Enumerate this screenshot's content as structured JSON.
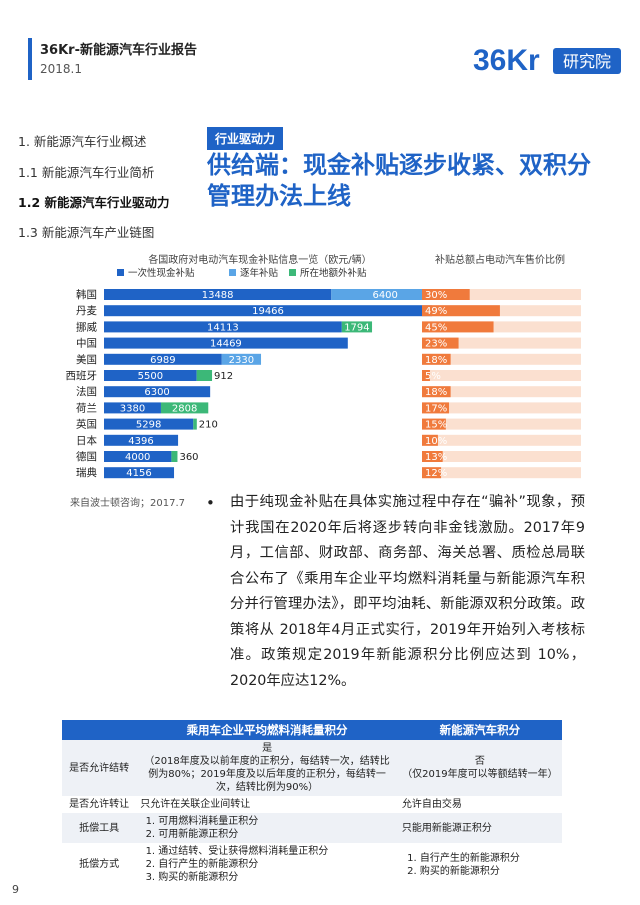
{
  "header": {
    "title": "36Kr-新能源汽车行业报告",
    "date": "2018.1",
    "logo_mark": "36Kr",
    "logo_text": "研究院"
  },
  "nav": {
    "items": [
      {
        "label": "1. 新能源汽车行业概述",
        "active": false
      },
      {
        "label": "1.1 新能源汽车行业简析",
        "active": false
      },
      {
        "label": "1.2 新能源汽车行业驱动力",
        "active": true
      },
      {
        "label": "1.3 新能源汽车产业链图",
        "active": false
      }
    ]
  },
  "section": {
    "tag": "行业驱动力",
    "headline": "供给端：现金补贴逐步收紧、双积分管理办法上线"
  },
  "colors": {
    "primary": "#1f63c6",
    "bar_series1": "#1f63c6",
    "bar_series2": "#5aa5e6",
    "bar_series3": "#3cb878",
    "pct_bar": "#f07a3c",
    "pct_bg": "#fbe0d0"
  },
  "chart_data": [
    {
      "type": "bar",
      "orientation": "horizontal",
      "stacked": true,
      "title": "各国政府对电动汽车现金补贴信息一览（欧元/辆）",
      "categories": [
        "韩国",
        "丹麦",
        "挪威",
        "中国",
        "美国",
        "西班牙",
        "法国",
        "荷兰",
        "英国",
        "日本",
        "德国",
        "瑞典"
      ],
      "series": [
        {
          "name": "一次性现金补贴",
          "values": [
            13488,
            19466,
            14113,
            14469,
            6989,
            5500,
            6300,
            3380,
            5298,
            4396,
            4000,
            4156
          ]
        },
        {
          "name": "逐年补贴",
          "values": [
            6400,
            0,
            0,
            0,
            2330,
            0,
            0,
            0,
            0,
            0,
            0,
            0
          ]
        },
        {
          "name": "所在地额外补贴",
          "values": [
            0,
            0,
            1794,
            0,
            0,
            912,
            0,
            2808,
            210,
            0,
            360,
            0
          ]
        }
      ],
      "labels": [
        [
          "13488",
          "6400",
          ""
        ],
        [
          "19466",
          "",
          ""
        ],
        [
          "14113",
          "",
          "1794"
        ],
        [
          "14469",
          "",
          ""
        ],
        [
          "6989",
          "2330",
          ""
        ],
        [
          "5500",
          "",
          "912"
        ],
        [
          "6300",
          "",
          ""
        ],
        [
          "3380",
          "",
          "2808"
        ],
        [
          "5298",
          "",
          "210"
        ],
        [
          "4396",
          "",
          ""
        ],
        [
          "4000",
          "",
          "360"
        ],
        [
          "4156",
          "",
          ""
        ]
      ],
      "xlim": [
        0,
        20000
      ]
    },
    {
      "type": "bar",
      "orientation": "horizontal",
      "title": "补贴总额占电动汽车售价比例",
      "categories": [
        "韩国",
        "丹麦",
        "挪威",
        "中国",
        "美国",
        "西班牙",
        "法国",
        "荷兰",
        "英国",
        "日本",
        "德国",
        "瑞典"
      ],
      "values": [
        30,
        49,
        45,
        23,
        18,
        5,
        18,
        17,
        15,
        10,
        13,
        12
      ],
      "value_labels": [
        "30%",
        "49%",
        "45%",
        "23%",
        "18%",
        "5%",
        "18%",
        "17%",
        "15%",
        "10%",
        "13%",
        "12%"
      ],
      "unit": "%",
      "xlim": [
        0,
        100
      ]
    }
  ],
  "source": "来自波士顿咨询；2017.7",
  "paragraph": "由于纯现金补贴在具体实施过程中存在“骗补”现象，预计我国在2020年后将逐步转向非金钱激励。2017年9月，工信部、财政部、商务部、海关总署、质检总局联合公布了《乘用车企业平均燃料消耗量与新能源汽车积分并行管理办法》，即平均油耗、新能源双积分政策。政策将从 2018年4月正式实行，2019年开始列入考核标准。政策规定2019年新能源积分比例应达到 10%，2020年应达12%。",
  "table": {
    "headers": [
      "",
      "乘用车企业平均燃料消耗量积分",
      "新能源汽车积分"
    ],
    "rows": [
      {
        "label": "是否允许结转",
        "col1": "是\n（2018年度及以前年度的正积分，每结转一次，结转比例为80%；2019年度及以后年度的正积分，每结转一次，结转比例为90%）",
        "col2": "否\n（仅2019年度可以等额结转一年）"
      },
      {
        "label": "是否允许转让",
        "col1": "只允许在关联企业间转让",
        "col2": "允许自由交易"
      },
      {
        "label": "抵偿工具",
        "col1_list": [
          "可用燃料消耗量正积分",
          "可用新能源正积分"
        ],
        "col2": "只能用新能源正积分"
      },
      {
        "label": "抵偿方式",
        "col1_list": [
          "通过结转、受让获得燃料消耗量正积分",
          "自行产生的新能源积分",
          "购买的新能源积分"
        ],
        "col2_list": [
          "自行产生的新能源积分",
          "购买的新能源积分"
        ]
      }
    ]
  },
  "page_number": "9"
}
